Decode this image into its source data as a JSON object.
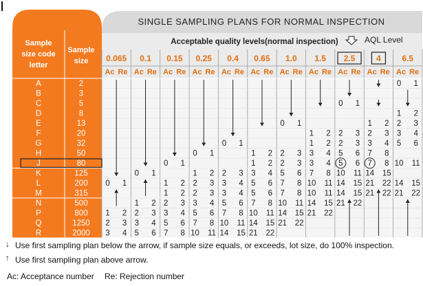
{
  "table": {
    "title": "SINGLE SAMPLING PLANS FOR NORMAL INSPECTION",
    "subtitle": "Acceptable quality levels(normal inspection)",
    "aql_level_label": "AQL Level",
    "col_code_header": [
      "Sample",
      "size code",
      "letter"
    ],
    "col_size_header": [
      "Sample",
      "size"
    ],
    "ac_label": "Ac",
    "re_label": "Re",
    "aql_values": [
      "0.065",
      "0.1",
      "0.15",
      "0.25",
      "0.4",
      "0.65",
      "1.0",
      "1.5",
      "2.5",
      "4",
      "6.5"
    ],
    "highlighted_aql": [
      "2.5",
      "4"
    ],
    "letters": [
      "A",
      "B",
      "C",
      "D",
      "E",
      "F",
      "G",
      "H",
      "J",
      "K",
      "L",
      "M",
      "N",
      "P",
      "Q",
      "R"
    ],
    "sizes": [
      "2",
      "3",
      "5",
      "8",
      "13",
      "20",
      "32",
      "50",
      "80",
      "125",
      "200",
      "315",
      "500",
      "800",
      "1250",
      "2000"
    ],
    "highlighted_row": "J",
    "cells": [
      [
        "",
        "",
        "",
        "",
        "",
        "",
        "",
        "",
        "",
        "",
        "",
        "",
        "",
        "",
        "",
        "",
        "",
        "",
        "",
        "",
        "0",
        "1"
      ],
      [
        "",
        "",
        "",
        "",
        "",
        "",
        "",
        "",
        "",
        "",
        "",
        "",
        "",
        "",
        "",
        "",
        "",
        "",
        "",
        "",
        "",
        ""
      ],
      [
        "",
        "",
        "",
        "",
        "",
        "",
        "",
        "",
        "",
        "",
        "",
        "",
        "",
        "",
        "",
        "",
        "0",
        "1",
        "",
        "",
        "",
        ""
      ],
      [
        "",
        "",
        "",
        "",
        "",
        "",
        "",
        "",
        "",
        "",
        "",
        "",
        "",
        "",
        "",
        "",
        "",
        "",
        "",
        "",
        "1",
        "2"
      ],
      [
        "",
        "",
        "",
        "",
        "",
        "",
        "",
        "",
        "",
        "",
        "",
        "",
        "0",
        "1",
        "",
        "",
        "",
        "",
        "1",
        "2",
        "2",
        "3"
      ],
      [
        "",
        "",
        "",
        "",
        "",
        "",
        "",
        "",
        "",
        "",
        "",
        "",
        "",
        "",
        "1",
        "2",
        "2",
        "3",
        "2",
        "3",
        "3",
        "4"
      ],
      [
        "",
        "",
        "",
        "",
        "",
        "",
        "",
        "",
        "0",
        "1",
        "",
        "",
        "",
        "",
        "1",
        "2",
        "2",
        "3",
        "3",
        "4",
        "5",
        "6"
      ],
      [
        "",
        "",
        "",
        "",
        "",
        "",
        "0",
        "1",
        "",
        "",
        "1",
        "2",
        "2",
        "3",
        "3",
        "4",
        "5",
        "6",
        "7",
        "8",
        "",
        ""
      ],
      [
        "",
        "",
        "",
        "",
        "0",
        "1",
        "",
        "",
        "",
        "",
        "1",
        "2",
        "2",
        "3",
        "3",
        "4",
        "5",
        "6",
        "7",
        "8",
        "10",
        "11"
      ],
      [
        "",
        "",
        "0",
        "1",
        "",
        "",
        "1",
        "2",
        "2",
        "3",
        "3",
        "4",
        "5",
        "6",
        "7",
        "8",
        "10",
        "11",
        "14",
        "15",
        "",
        ""
      ],
      [
        "0",
        "1",
        "",
        "",
        "1",
        "2",
        "2",
        "3",
        "3",
        "4",
        "5",
        "6",
        "7",
        "8",
        "10",
        "11",
        "14",
        "15",
        "21",
        "22",
        "14",
        "15"
      ],
      [
        "",
        "",
        "",
        "",
        "1",
        "2",
        "2",
        "3",
        "3",
        "4",
        "5",
        "6",
        "7",
        "8",
        "10",
        "11",
        "14",
        "15",
        "21",
        "22",
        "21",
        "22"
      ],
      [
        "",
        "",
        "1",
        "2",
        "2",
        "3",
        "3",
        "4",
        "5",
        "6",
        "7",
        "8",
        "10",
        "11",
        "14",
        "15",
        "21",
        "22",
        "",
        "",
        "",
        ""
      ],
      [
        "1",
        "2",
        "2",
        "3",
        "3",
        "4",
        "5",
        "6",
        "7",
        "8",
        "10",
        "11",
        "14",
        "15",
        "21",
        "22",
        "",
        "",
        "",
        "",
        "",
        ""
      ],
      [
        "2",
        "3",
        "3",
        "4",
        "5",
        "6",
        "7",
        "8",
        "10",
        "11",
        "14",
        "15",
        "21",
        "22",
        "",
        "",
        "",
        "",
        "",
        "",
        "",
        ""
      ],
      [
        "3",
        "4",
        "5",
        "6",
        "7",
        "8",
        "10",
        "11",
        "14",
        "15",
        "21",
        "22",
        "",
        "",
        "",
        "",
        "",
        "",
        "",
        "",
        "",
        ""
      ]
    ],
    "row8_circled_values": [
      "5",
      "7"
    ]
  },
  "notes": {
    "below_arrow": "Use first sampling plan below the arrow, if sample size equals, or exceeds, lot size, do 100% inspection.",
    "above_arrow": "Use first sampling plan above arrow.",
    "ac_definition": "Ac: Acceptance number",
    "re_definition": "Re: Rejection number"
  },
  "colors": {
    "orange": "#f47a20",
    "orange_dark": "#e06510",
    "header_gray": "#d9d9d9",
    "table_bg": "#f2f2f2",
    "grid": "#9a9a9a",
    "aql_text": "#e07010",
    "text": "#222222"
  }
}
